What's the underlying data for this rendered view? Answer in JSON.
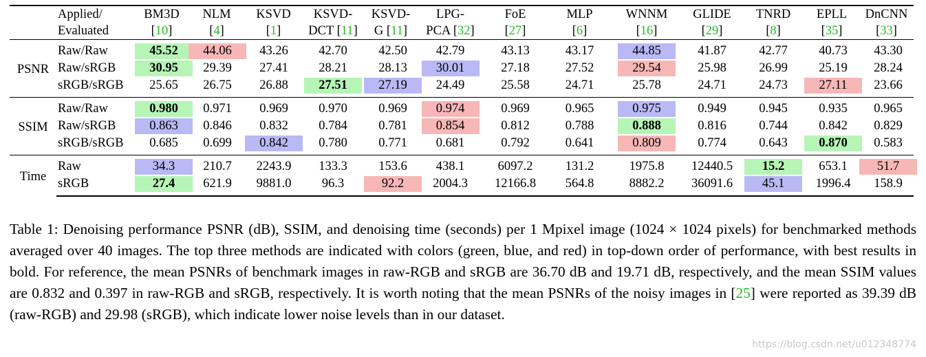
{
  "table": {
    "corner_line1": "Applied/",
    "corner_line2": "Evaluated",
    "methods": [
      {
        "name": "BM3D",
        "ref": "10"
      },
      {
        "name": "NLM",
        "ref": "4"
      },
      {
        "name": "KSVD",
        "ref": "1"
      },
      {
        "name": "KSVD-",
        "name2": "DCT",
        "ref": "11"
      },
      {
        "name": "KSVD-",
        "name2": "G",
        "ref": "11"
      },
      {
        "name": "LPG-",
        "name2": "PCA",
        "ref": "32"
      },
      {
        "name": "FoE",
        "ref": "27"
      },
      {
        "name": "MLP",
        "ref": "6"
      },
      {
        "name": "WNNM",
        "ref": "16"
      },
      {
        "name": "GLIDE",
        "ref": "29"
      },
      {
        "name": "TNRD",
        "ref": "8"
      },
      {
        "name": "EPLL",
        "ref": "35"
      },
      {
        "name": "DnCNN",
        "ref": "33"
      }
    ],
    "groups": [
      {
        "metric": "PSNR",
        "rows": [
          {
            "label": "Raw/Raw",
            "values": [
              "45.52",
              "44.06",
              "43.26",
              "42.70",
              "42.50",
              "42.79",
              "43.13",
              "43.17",
              "44.85",
              "41.87",
              "42.77",
              "40.73",
              "43.30"
            ],
            "hl": [
              "green",
              "red",
              "",
              "",
              "",
              "",
              "",
              "",
              "blue",
              "",
              "",
              "",
              ""
            ],
            "bold": [
              0
            ]
          },
          {
            "label": "Raw/sRGB",
            "values": [
              "30.95",
              "29.39",
              "27.41",
              "28.21",
              "28.13",
              "30.01",
              "27.18",
              "27.52",
              "29.54",
              "25.98",
              "26.99",
              "25.19",
              "28.24"
            ],
            "hl": [
              "green",
              "",
              "",
              "",
              "",
              "blue",
              "",
              "",
              "red",
              "",
              "",
              "",
              ""
            ],
            "bold": [
              0
            ]
          },
          {
            "label": "sRGB/sRGB",
            "values": [
              "25.65",
              "26.75",
              "26.88",
              "27.51",
              "27.19",
              "24.49",
              "25.58",
              "24.71",
              "25.78",
              "24.71",
              "24.73",
              "27.11",
              "23.66"
            ],
            "hl": [
              "",
              "",
              "",
              "green",
              "blue",
              "",
              "",
              "",
              "",
              "",
              "",
              "red",
              ""
            ],
            "bold": [
              3
            ]
          }
        ]
      },
      {
        "metric": "SSIM",
        "rows": [
          {
            "label": "Raw/Raw",
            "values": [
              "0.980",
              "0.971",
              "0.969",
              "0.970",
              "0.969",
              "0.974",
              "0.969",
              "0.965",
              "0.975",
              "0.949",
              "0.945",
              "0.935",
              "0.965"
            ],
            "hl": [
              "green",
              "",
              "",
              "",
              "",
              "red",
              "",
              "",
              "blue",
              "",
              "",
              "",
              ""
            ],
            "bold": [
              0
            ]
          },
          {
            "label": "Raw/sRGB",
            "values": [
              "0.863",
              "0.846",
              "0.832",
              "0.784",
              "0.781",
              "0.854",
              "0.812",
              "0.788",
              "0.888",
              "0.816",
              "0.744",
              "0.842",
              "0.829"
            ],
            "hl": [
              "blue",
              "",
              "",
              "",
              "",
              "red",
              "",
              "",
              "green",
              "",
              "",
              "",
              ""
            ],
            "bold": [
              8
            ]
          },
          {
            "label": "sRGB/sRGB",
            "values": [
              "0.685",
              "0.699",
              "0.842",
              "0.780",
              "0.771",
              "0.681",
              "0.792",
              "0.641",
              "0.809",
              "0.774",
              "0.643",
              "0.870",
              "0.583"
            ],
            "hl": [
              "",
              "",
              "blue",
              "",
              "",
              "",
              "",
              "",
              "red",
              "",
              "",
              "green",
              ""
            ],
            "bold": [
              11
            ]
          }
        ]
      },
      {
        "metric": "Time",
        "rows": [
          {
            "label": "Raw",
            "values": [
              "34.3",
              "210.7",
              "2243.9",
              "133.3",
              "153.6",
              "438.1",
              "6097.2",
              "131.2",
              "1975.8",
              "12440.5",
              "15.2",
              "653.1",
              "51.7"
            ],
            "hl": [
              "blue",
              "",
              "",
              "",
              "",
              "",
              "",
              "",
              "",
              "",
              "green",
              "",
              "red"
            ],
            "bold": [
              10
            ]
          },
          {
            "label": "sRGB",
            "values": [
              "27.4",
              "621.9",
              "9881.0",
              "96.3",
              "92.2",
              "2004.3",
              "12166.8",
              "564.8",
              "8882.2",
              "36091.6",
              "45.1",
              "1996.4",
              "158.9"
            ],
            "hl": [
              "green",
              "",
              "",
              "",
              "red",
              "",
              "",
              "",
              "",
              "",
              "blue",
              "",
              ""
            ],
            "bold": [
              0
            ]
          }
        ]
      }
    ]
  },
  "caption": {
    "part1": "Table 1: Denoising performance PSNR (dB), SSIM, and denoising time (seconds) per 1 Mpixel image (1024 × 1024 pixels) for benchmarked methods averaged over 40 images. The top three methods are indicated with colors (green, blue, and red) in top-down order of performance, with best results in bold. For reference, the mean PSNRs of benchmark images in raw-RGB and sRGB are 36.70 dB and 19.71 dB, respectively, and the mean SSIM values are 0.832 and 0.397 in raw-RGB and sRGB, respectively. It is worth noting that the mean PSNRs of the noisy images in [",
    "ref": "25",
    "part2": "] were reported as 39.39 dB (raw-RGB) and 29.98 (sRGB), which indicate lower noise levels than in our dataset."
  },
  "watermark": "https://blog.csdn.net/u012348774",
  "colors": {
    "green": "#b6f5b6",
    "blue": "#b9b9f5",
    "red": "#f7b7b7",
    "ref_link": "#22bb22"
  }
}
